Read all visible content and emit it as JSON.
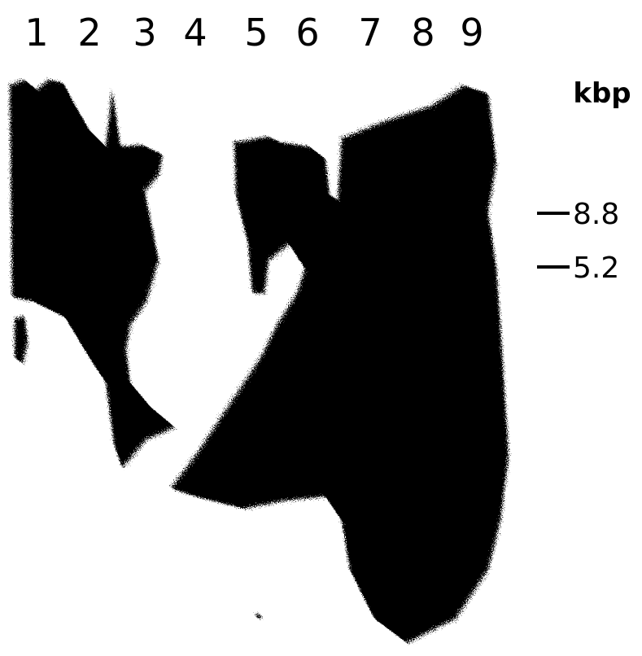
{
  "lanes": [
    "1",
    "2",
    "3",
    "4",
    "5",
    "6",
    "7",
    "8",
    "9"
  ],
  "size_unit": "kbp",
  "markers": [
    "8.8",
    "5.2"
  ]
}
